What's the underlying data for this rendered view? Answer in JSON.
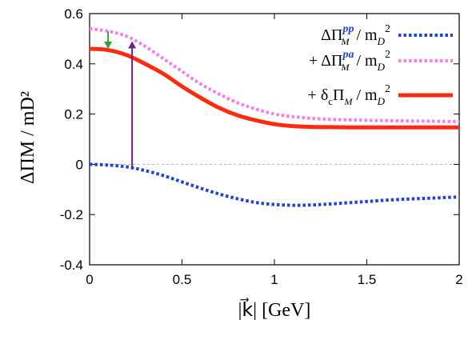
{
  "chart_data": {
    "type": "line",
    "title": "",
    "xlabel": "|k⃗|  [GeV]",
    "ylabel": "ΔΠM / mD²",
    "xlim": [
      0,
      2
    ],
    "ylim": [
      -0.4,
      0.6
    ],
    "x_ticks": [
      "0",
      "0.5",
      "1",
      "1.5",
      "2"
    ],
    "y_ticks": [
      "-0.4",
      "-0.2",
      "0",
      "0.2",
      "0.4",
      "0.6"
    ],
    "x_tick_values": [
      0,
      0.5,
      1,
      1.5,
      2
    ],
    "y_tick_values": [
      -0.4,
      -0.2,
      0,
      0.2,
      0.4,
      0.6
    ],
    "grid": false,
    "zero_line": true,
    "legend_position": "top-right",
    "series": [
      {
        "name": "ΔΠM^pp / mD²",
        "label_parts": {
          "lead": "ΔΠ",
          "sub": "M",
          "sup": "pp",
          "tail": " / m",
          "tail_sub": "D",
          "tail_sup": "2"
        },
        "color": "#2040e0",
        "style": "dotted",
        "x": [
          0,
          0.1,
          0.2,
          0.3,
          0.4,
          0.5,
          0.6,
          0.7,
          0.8,
          0.9,
          1.0,
          1.1,
          1.2,
          1.3,
          1.4,
          1.5,
          1.6,
          1.7,
          1.8,
          1.9,
          2.0
        ],
        "y": [
          0.0,
          -0.003,
          -0.01,
          -0.025,
          -0.045,
          -0.07,
          -0.095,
          -0.118,
          -0.137,
          -0.152,
          -0.16,
          -0.163,
          -0.162,
          -0.158,
          -0.153,
          -0.148,
          -0.143,
          -0.139,
          -0.136,
          -0.133,
          -0.13
        ]
      },
      {
        "name": "+ ΔΠM^pa / mD²",
        "label_parts": {
          "lead": "+ ΔΠ",
          "sub": "M",
          "sup": "pa",
          "tail": " / m",
          "tail_sub": "D",
          "tail_sup": "2"
        },
        "color": "#f080f0",
        "style": "dotted",
        "x": [
          0,
          0.1,
          0.2,
          0.3,
          0.4,
          0.5,
          0.6,
          0.7,
          0.8,
          0.9,
          1.0,
          1.1,
          1.2,
          1.3,
          1.4,
          1.5,
          1.6,
          1.7,
          1.8,
          1.9,
          2.0
        ],
        "y": [
          0.54,
          0.53,
          0.51,
          0.47,
          0.42,
          0.37,
          0.32,
          0.28,
          0.245,
          0.22,
          0.2,
          0.19,
          0.183,
          0.179,
          0.177,
          0.175,
          0.174,
          0.173,
          0.172,
          0.171,
          0.17
        ]
      },
      {
        "name": "+ δcΠM / mD²",
        "label_parts": {
          "lead": "+ δ",
          "sub": "c",
          "mid": "Π",
          "mid_sub": "M",
          "tail": " / m",
          "tail_sub": "D",
          "tail_sup": "2"
        },
        "color": "#ff2a10",
        "style": "solid",
        "x": [
          0,
          0.1,
          0.2,
          0.3,
          0.4,
          0.5,
          0.6,
          0.7,
          0.8,
          0.9,
          1.0,
          1.1,
          1.2,
          1.3,
          1.4,
          1.5,
          1.6,
          1.7,
          1.8,
          1.9,
          2.0
        ],
        "y": [
          0.46,
          0.455,
          0.435,
          0.4,
          0.36,
          0.31,
          0.265,
          0.225,
          0.195,
          0.175,
          0.16,
          0.152,
          0.149,
          0.148,
          0.147,
          0.147,
          0.147,
          0.147,
          0.147,
          0.147,
          0.147
        ]
      }
    ],
    "annotations": [
      {
        "type": "arrow",
        "color": "#30a030",
        "x": 0.1,
        "y_from": 0.53,
        "y_to": 0.46
      },
      {
        "type": "arrow",
        "color": "#702080",
        "x": 0.23,
        "y_from": -0.015,
        "y_to": 0.49
      }
    ]
  }
}
